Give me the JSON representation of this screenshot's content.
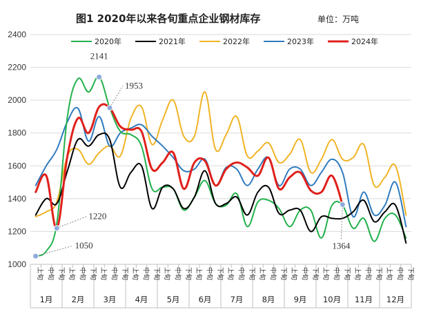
{
  "chart_data": {
    "type": "line",
    "title": "图1  2020年以来各旬重点企业钢材库存",
    "unit_label": "单位：万吨",
    "ylim": [
      1000,
      2400
    ],
    "yticks": [
      1000,
      1200,
      1400,
      1600,
      1800,
      2000,
      2200,
      2400
    ],
    "grid": true,
    "legend_position": "top",
    "months": [
      "1月",
      "2月",
      "3月",
      "4月",
      "5月",
      "6月",
      "7月",
      "8月",
      "9月",
      "10月",
      "11月",
      "12月"
    ],
    "xtick_labels": [
      "上旬",
      "中旬",
      "下旬",
      "上旬",
      "中旬",
      "下旬",
      "上旬",
      "中旬",
      "下旬",
      "上旬",
      "中旬",
      "下旬",
      "上旬",
      "中旬",
      "下旬",
      "上旬",
      "中旬",
      "下旬",
      "上旬",
      "中旬",
      "下旬",
      "上旬",
      "中旬",
      "下旬",
      "上旬",
      "中旬",
      "下旬",
      "上旬",
      "中旬",
      "下旬",
      "上旬",
      "中旬",
      "下旬",
      "上旬",
      "中旬",
      "下旬"
    ],
    "series": [
      {
        "name": "2020年",
        "color": "#22b14c",
        "values": [
          1050,
          1080,
          1250,
          1900,
          2130,
          2050,
          2141,
          1953,
          1810,
          1790,
          1720,
          1460,
          1470,
          1460,
          1330,
          1410,
          1510,
          1370,
          1360,
          1430,
          1230,
          1380,
          1390,
          1340,
          1230,
          1330,
          1330,
          1160,
          1360,
          1360,
          1220,
          1280,
          1140,
          1280,
          1300,
          1160
        ]
      },
      {
        "name": "2021年",
        "color": "#000000",
        "values": [
          1300,
          1400,
          1370,
          1570,
          1760,
          1720,
          1790,
          1760,
          1470,
          1560,
          1600,
          1340,
          1470,
          1460,
          1340,
          1410,
          1570,
          1370,
          1370,
          1410,
          1300,
          1440,
          1470,
          1310,
          1330,
          1330,
          1200,
          1290,
          1280,
          1280,
          1320,
          1390,
          1260,
          1320,
          1360,
          1130
        ]
      },
      {
        "name": "2022年",
        "color": "#f0b323",
        "values": [
          1290,
          1320,
          1380,
          1660,
          1700,
          1610,
          1680,
          1720,
          1660,
          1890,
          1960,
          1730,
          1880,
          2000,
          1780,
          1780,
          2050,
          1700,
          1790,
          1900,
          1660,
          1690,
          1740,
          1620,
          1670,
          1760,
          1560,
          1640,
          1760,
          1640,
          1650,
          1730,
          1480,
          1530,
          1600,
          1300
        ]
      },
      {
        "name": "2023年",
        "color": "#2e7bbf",
        "values": [
          1480,
          1600,
          1700,
          1870,
          1950,
          1750,
          1900,
          1720,
          1800,
          1830,
          1850,
          1780,
          1720,
          1650,
          1570,
          1580,
          1640,
          1480,
          1590,
          1580,
          1480,
          1580,
          1650,
          1480,
          1580,
          1580,
          1480,
          1560,
          1640,
          1560,
          1290,
          1440,
          1300,
          1360,
          1500,
          1230
        ]
      },
      {
        "name": "2024年",
        "color": "#e0201b",
        "values": [
          1440,
          1540,
          1220,
          1660,
          1890,
          1800,
          1960,
          1953,
          1840,
          1820,
          1810,
          1580,
          1620,
          1680,
          1460,
          1620,
          1630,
          1480,
          1580,
          1620,
          1590,
          1540,
          1650,
          1460,
          1530,
          1560,
          1450,
          1440,
          1540,
          1364
        ]
      }
    ],
    "annotations": [
      {
        "label": "2141",
        "series": "2020年",
        "index": 6,
        "value": 2141
      },
      {
        "label": "1953",
        "series": "2024年",
        "index": 7,
        "value": 1953
      },
      {
        "label": "1220",
        "series": "2024年",
        "index": 2,
        "value": 1220
      },
      {
        "label": "1050",
        "series": "2020年",
        "index": 0,
        "value": 1050
      },
      {
        "label": "1364",
        "series": "2024年",
        "index": 29,
        "value": 1364
      }
    ]
  }
}
